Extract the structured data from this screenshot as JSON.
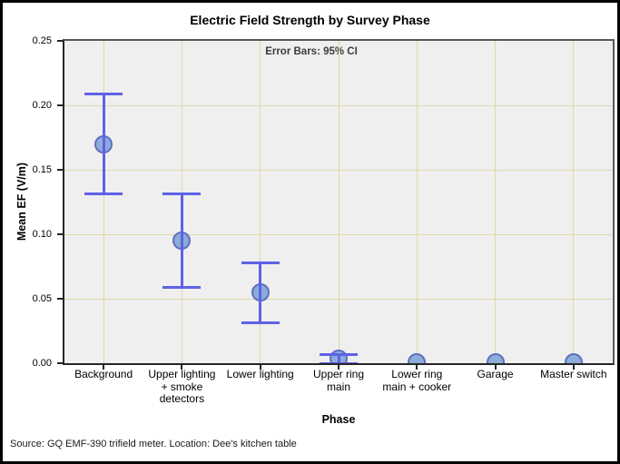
{
  "chart_data": {
    "type": "scatter",
    "subtype": "mean-points-with-error-bars",
    "title": "Electric Field Strength by Survey Phase",
    "annotation": "Error Bars: 95% CI",
    "xlabel": "Phase",
    "ylabel": "Mean EF (V/m)",
    "source_note": "Source: GQ EMF-390 trifield meter. Location: Dee's kitchen table",
    "categories": [
      "Background",
      "Upper lighting + smoke detectors",
      "Lower lighting",
      "Upper ring main",
      "Lower ring main + cooker",
      "Garage",
      "Master switch"
    ],
    "points": [
      {
        "category": "Background",
        "mean": 0.17,
        "ci_low": 0.131,
        "ci_high": 0.209
      },
      {
        "category": "Upper lighting + smoke detectors",
        "mean": 0.095,
        "ci_low": 0.059,
        "ci_high": 0.131
      },
      {
        "category": "Lower lighting",
        "mean": 0.055,
        "ci_low": 0.031,
        "ci_high": 0.078
      },
      {
        "category": "Upper ring main",
        "mean": 0.0035,
        "ci_low": 0.0,
        "ci_high": 0.007
      },
      {
        "category": "Lower ring main + cooker",
        "mean": 0.001,
        "ci_low": null,
        "ci_high": null
      },
      {
        "category": "Garage",
        "mean": 0.001,
        "ci_low": null,
        "ci_high": null
      },
      {
        "category": "Master switch",
        "mean": 0.001,
        "ci_low": null,
        "ci_high": null
      }
    ],
    "ylim": [
      0,
      0.25
    ],
    "yticks": [
      0.0,
      0.05,
      0.1,
      0.15,
      0.2,
      0.25
    ],
    "grid": true,
    "legend": "none",
    "colors": {
      "marker_fill": "#8cacd9",
      "marker_stroke": "#5f6fc0",
      "error_bar": "#5f62e6",
      "grid_line": "#ded9ab",
      "plot_bg": "#efefef"
    }
  }
}
